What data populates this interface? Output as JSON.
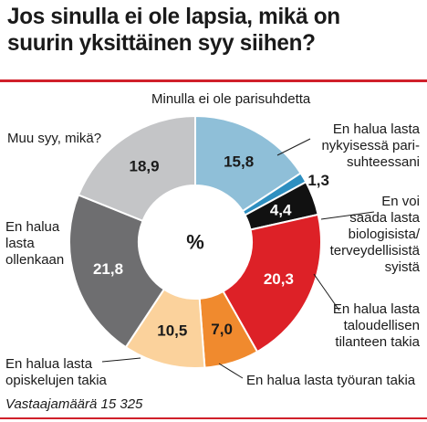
{
  "title_line1": "Jos sinulla ei ole lapsia, mikä on",
  "title_line2": "suurin yksittäinen syy siihen?",
  "center_label": "%",
  "footer": "Vastaajamäärä 15 325",
  "colors": {
    "accent": "#d0202a"
  },
  "chart_data": {
    "type": "pie",
    "title": "Jos sinulla ei ole lapsia, mikä on suurin yksittäinen syy siihen?",
    "unit": "%",
    "slices": [
      {
        "label": "Minulla ei ole parisuhdetta",
        "value": 15.8,
        "value_text": "15,8",
        "color": "#8fbfd8",
        "text_color": "#1a1a1a"
      },
      {
        "label": "En halua lasta nykyisessä parisuhteessani",
        "value": 1.3,
        "value_text": "1,3",
        "color": "#2e8fc0",
        "text_color": "#1a1a1a"
      },
      {
        "label": "En voi saada lasta biologisista/ terveydellisistä syistä",
        "value": 4.4,
        "value_text": "4,4",
        "color": "#111111",
        "text_color": "#ffffff"
      },
      {
        "label": "En halua lasta taloudellisen tilanteen takia",
        "value": 20.3,
        "value_text": "20,3",
        "color": "#dd2127",
        "text_color": "#ffffff"
      },
      {
        "label": "En halua lasta työuran takia",
        "value": 7.0,
        "value_text": "7,0",
        "color": "#f08a2e",
        "text_color": "#1a1a1a"
      },
      {
        "label": "En halua lasta opiskelujen takia",
        "value": 10.5,
        "value_text": "10,5",
        "color": "#fbd29c",
        "text_color": "#1a1a1a"
      },
      {
        "label": "En halua lasta ollenkaan",
        "value": 21.8,
        "value_text": "21,8",
        "color": "#6e6e70",
        "text_color": "#ffffff"
      },
      {
        "label": "Muu syy, mikä?",
        "value": 18.9,
        "value_text": "18,9",
        "color": "#c4c5c7",
        "text_color": "#1a1a1a"
      }
    ]
  },
  "labels": {
    "parisuhde": "Minulla ei ole parisuhdetta",
    "nykyinen_1": "En halua lasta",
    "nykyinen_2": "nykyisessä pari-",
    "nykyinen_3": "suhteessani",
    "bio_1": "En voi",
    "bio_2": "saada lasta",
    "bio_3": "biologisista/",
    "bio_4": "terveydellisistä",
    "bio_5": "syistä",
    "talous_1": "En halua lasta",
    "talous_2": "taloudellisen",
    "talous_3": "tilanteen takia",
    "tyo": "En halua lasta työuran takia",
    "opiskelu_1": "En halua lasta",
    "opiskelu_2": "opiskelujen takia",
    "ollenkaan_1": "En halua",
    "ollenkaan_2": "lasta",
    "ollenkaan_3": "ollenkaan",
    "muu": "Muu syy, mikä?"
  }
}
